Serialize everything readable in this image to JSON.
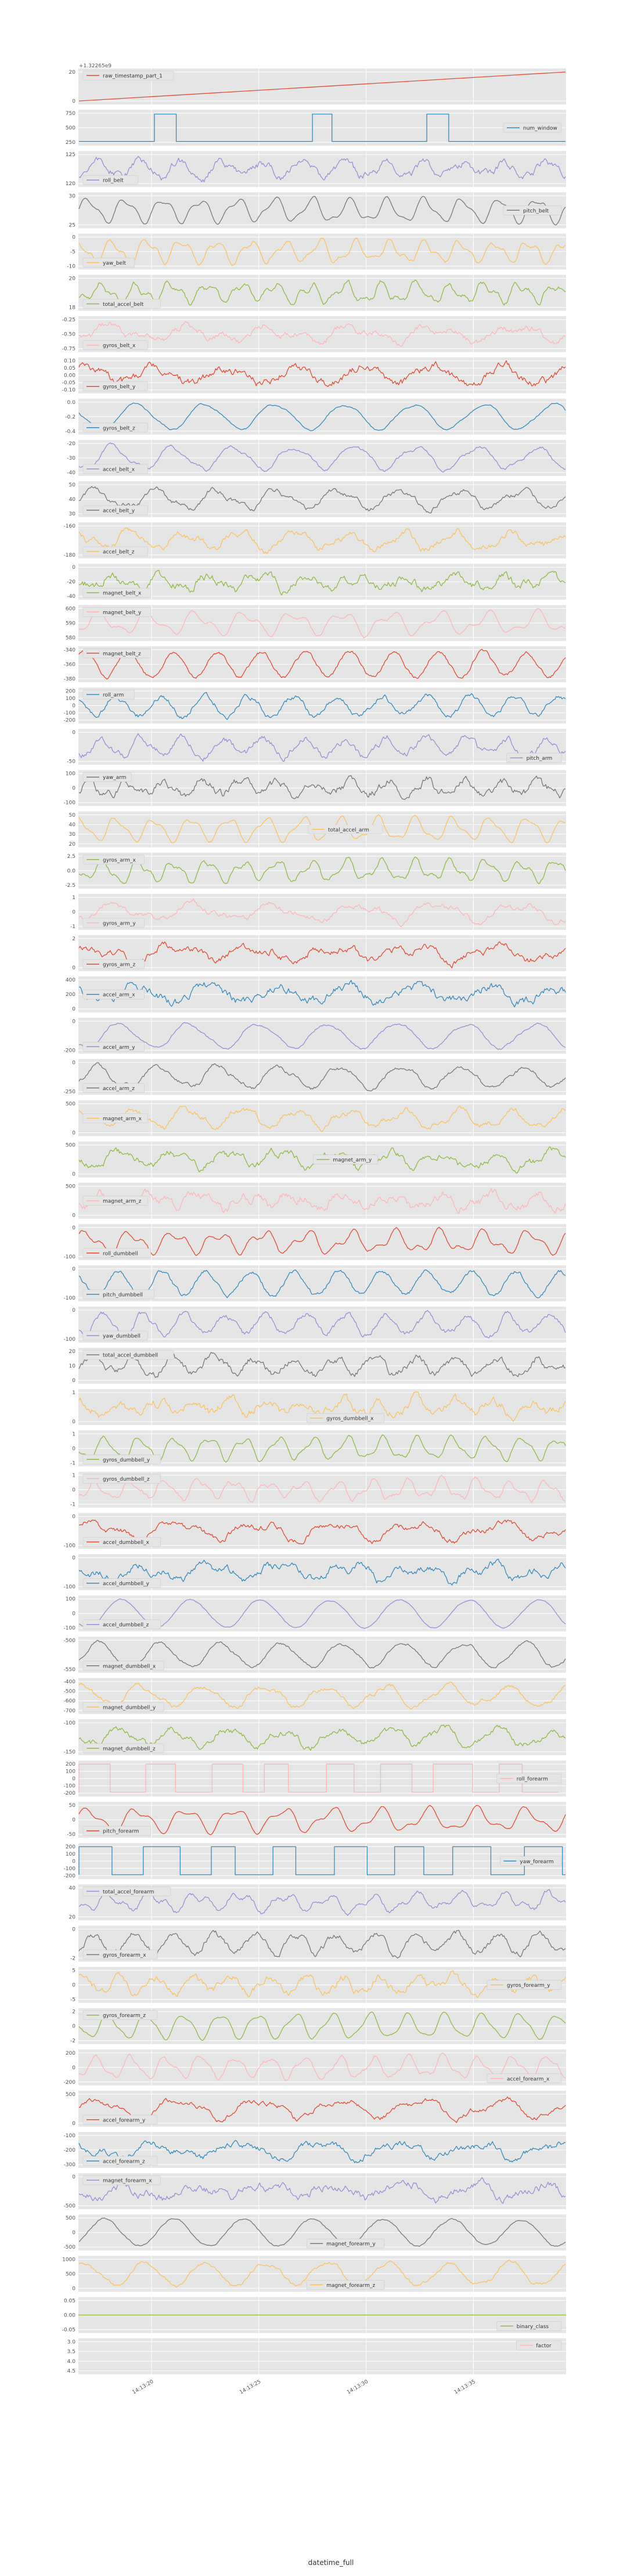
{
  "figure": {
    "offset_text": "+1.32265e9",
    "xlabel": "datetime_full"
  },
  "palette": [
    "#E24A33",
    "#348ABD",
    "#988ED5",
    "#777777",
    "#FBC15E",
    "#8EBA42",
    "#FFB5B8"
  ],
  "chart_data": {
    "type": "line",
    "layout": "stacked-subplots-shared-x",
    "x_ticks": [
      "14:13:20",
      "14:13:25",
      "14:13:30",
      "14:13:35"
    ],
    "x_tick_fractions": [
      0.15,
      0.37,
      0.59,
      0.81
    ],
    "xlabel": "datetime_full",
    "grid": true,
    "panels": [
      {
        "name": "raw_timestamp_part_1",
        "kind": "ramp",
        "yticks": [
          "20",
          "0"
        ],
        "ylim": [
          -5,
          30
        ],
        "legend": "upper-left",
        "color": 0
      },
      {
        "name": "num_window",
        "kind": "steps",
        "yticks": [
          "750",
          "500",
          "250"
        ],
        "ylim": [
          100,
          850
        ],
        "legend": "center-right",
        "color": 1
      },
      {
        "name": "roll_belt",
        "kind": "signal",
        "yticks": [
          "125",
          "120"
        ],
        "legend": "lower-left",
        "color": 2
      },
      {
        "name": "pitch_belt",
        "kind": "signal",
        "yticks": [
          "30",
          "25"
        ],
        "legend": "center-right",
        "color": 3
      },
      {
        "name": "yaw_belt",
        "kind": "signal",
        "yticks": [
          "0",
          "-5",
          "-10"
        ],
        "legend": "lower-left",
        "color": 4
      },
      {
        "name": "total_accel_belt",
        "kind": "signal",
        "yticks": [
          "20",
          "18"
        ],
        "legend": "lower-left",
        "color": 5
      },
      {
        "name": "gyros_belt_x",
        "kind": "signal",
        "yticks": [
          "-0.25",
          "-0.50",
          "-0.75"
        ],
        "legend": "lower-left",
        "color": 6
      },
      {
        "name": "gyros_belt_y",
        "kind": "signal",
        "yticks": [
          "0.10",
          "0.05",
          "0.00",
          "-0.05",
          "-0.10"
        ],
        "legend": "lower-left",
        "color": 0
      },
      {
        "name": "gyros_belt_z",
        "kind": "signal",
        "yticks": [
          "0.0",
          "-0.2",
          "-0.4"
        ],
        "legend": "lower-left",
        "color": 1
      },
      {
        "name": "accel_belt_x",
        "kind": "signal",
        "yticks": [
          "-20",
          "-30",
          "-40"
        ],
        "legend": "lower-left",
        "color": 2
      },
      {
        "name": "accel_belt_y",
        "kind": "signal",
        "yticks": [
          "50",
          "40",
          "30"
        ],
        "legend": "lower-left",
        "color": 3
      },
      {
        "name": "accel_belt_z",
        "kind": "signal",
        "yticks": [
          "-160",
          "-180"
        ],
        "legend": "lower-left",
        "color": 4
      },
      {
        "name": "magnet_belt_x",
        "kind": "signal",
        "yticks": [
          "0",
          "-20",
          "-40"
        ],
        "legend": "lower-left",
        "color": 5
      },
      {
        "name": "magnet_belt_y",
        "kind": "signal",
        "yticks": [
          "600",
          "590",
          "580"
        ],
        "legend": "upper-left",
        "color": 6
      },
      {
        "name": "magnet_belt_z",
        "kind": "signal",
        "yticks": [
          "-340",
          "-360",
          "-380"
        ],
        "legend": "upper-left",
        "color": 0
      },
      {
        "name": "roll_arm",
        "kind": "signal",
        "yticks": [
          "200",
          "100",
          "0",
          "-100",
          "-200"
        ],
        "legend": "upper-left",
        "color": 1
      },
      {
        "name": "pitch_arm",
        "kind": "signal",
        "yticks": [
          "0",
          "-50"
        ],
        "legend": "lower-right",
        "color": 2
      },
      {
        "name": "yaw_arm",
        "kind": "signal",
        "yticks": [
          "100",
          "0",
          "-100"
        ],
        "legend": "upper-left",
        "color": 3
      },
      {
        "name": "total_accel_arm",
        "kind": "signal",
        "yticks": [
          "50",
          "40",
          "30",
          "20"
        ],
        "legend": "center",
        "color": 4
      },
      {
        "name": "gyros_arm_x",
        "kind": "signal",
        "yticks": [
          "2.5",
          "0.0",
          "-2.5"
        ],
        "legend": "upper-left",
        "color": 5
      },
      {
        "name": "gyros_arm_y",
        "kind": "signal",
        "yticks": [
          "1",
          "0",
          "-1"
        ],
        "legend": "lower-left",
        "color": 6
      },
      {
        "name": "gyros_arm_z",
        "kind": "signal",
        "yticks": [
          "2",
          "0"
        ],
        "legend": "lower-left",
        "color": 0
      },
      {
        "name": "accel_arm_x",
        "kind": "signal",
        "yticks": [
          "400",
          "200",
          "0"
        ],
        "legend": "center-left",
        "color": 1
      },
      {
        "name": "accel_arm_y",
        "kind": "signal",
        "yticks": [
          "0",
          "-200"
        ],
        "legend": "lower-left",
        "color": 2
      },
      {
        "name": "accel_arm_z",
        "kind": "signal",
        "yticks": [
          "0",
          "-250"
        ],
        "legend": "lower-left",
        "color": 3
      },
      {
        "name": "magnet_arm_x",
        "kind": "signal",
        "yticks": [
          "500",
          "0"
        ],
        "legend": "center-left",
        "color": 4
      },
      {
        "name": "magnet_arm_y",
        "kind": "signal",
        "yticks": [
          "500",
          "0"
        ],
        "legend": "center",
        "color": 5
      },
      {
        "name": "magnet_arm_z",
        "kind": "signal",
        "yticks": [
          "500",
          "0"
        ],
        "legend": "center-left",
        "color": 6
      },
      {
        "name": "roll_dumbbell",
        "kind": "signal",
        "yticks": [
          "0",
          "-100"
        ],
        "legend": "lower-left",
        "color": 0
      },
      {
        "name": "pitch_dumbbell",
        "kind": "signal",
        "yticks": [
          "0",
          "-100"
        ],
        "legend": "lower-left",
        "color": 1
      },
      {
        "name": "yaw_dumbbell",
        "kind": "signal",
        "yticks": [
          "0",
          "-100"
        ],
        "legend": "lower-left",
        "color": 2
      },
      {
        "name": "total_accel_dumbbell",
        "kind": "signal",
        "yticks": [
          "20",
          "10",
          "0"
        ],
        "legend": "upper-left",
        "color": 3
      },
      {
        "name": "gyros_dumbbell_x",
        "kind": "signal",
        "yticks": [
          "1",
          "0"
        ],
        "legend": "lower-center",
        "color": 4
      },
      {
        "name": "gyros_dumbbell_y",
        "kind": "signal",
        "yticks": [
          "1",
          "0",
          "-1"
        ],
        "legend": "lower-left",
        "color": 5
      },
      {
        "name": "gyros_dumbbell_z",
        "kind": "signal",
        "yticks": [
          "1",
          "0",
          "-1"
        ],
        "legend": "upper-left",
        "color": 6
      },
      {
        "name": "accel_dumbbell_x",
        "kind": "signal",
        "yticks": [
          "0",
          "-100"
        ],
        "legend": "lower-left",
        "color": 0
      },
      {
        "name": "accel_dumbbell_y",
        "kind": "signal",
        "yticks": [
          "0",
          "-100"
        ],
        "legend": "lower-left",
        "color": 1
      },
      {
        "name": "accel_dumbbell_z",
        "kind": "signal",
        "yticks": [
          "100",
          "0",
          "-100"
        ],
        "legend": "lower-left",
        "color": 2
      },
      {
        "name": "magnet_dumbbell_x",
        "kind": "signal",
        "yticks": [
          "-500",
          "-550"
        ],
        "legend": "lower-left",
        "color": 3
      },
      {
        "name": "magnet_dumbbell_y",
        "kind": "signal",
        "yticks": [
          "-400",
          "-500",
          "-600",
          "-700"
        ],
        "legend": "lower-left",
        "color": 4
      },
      {
        "name": "magnet_dumbbell_z",
        "kind": "signal",
        "yticks": [
          "-100",
          "-150"
        ],
        "legend": "lower-left",
        "color": 5
      },
      {
        "name": "roll_forearm",
        "kind": "square",
        "yticks": [
          "200",
          "100",
          "0",
          "-100",
          "-200"
        ],
        "legend": "center-right",
        "color": 6
      },
      {
        "name": "pitch_forearm",
        "kind": "signal",
        "yticks": [
          "50",
          "0",
          "-50"
        ],
        "legend": "lower-left",
        "color": 0
      },
      {
        "name": "yaw_forearm",
        "kind": "square",
        "yticks": [
          "200",
          "100",
          "0",
          "-100",
          "-200"
        ],
        "legend": "center-right",
        "color": 1
      },
      {
        "name": "total_accel_forearm",
        "kind": "signal",
        "yticks": [
          "40",
          "20"
        ],
        "legend": "upper-left",
        "color": 2
      },
      {
        "name": "gyros_forearm_x",
        "kind": "signal",
        "yticks": [
          "0",
          "-2"
        ],
        "legend": "lower-left",
        "color": 3
      },
      {
        "name": "gyros_forearm_y",
        "kind": "signal",
        "yticks": [
          "5",
          "0",
          "-5"
        ],
        "legend": "center-right",
        "color": 4
      },
      {
        "name": "gyros_forearm_z",
        "kind": "signal",
        "yticks": [
          "2",
          "0",
          "-2"
        ],
        "legend": "upper-left",
        "color": 5
      },
      {
        "name": "accel_forearm_x",
        "kind": "signal",
        "yticks": [
          "200",
          "0",
          "-200"
        ],
        "legend": "lower-right",
        "color": 6
      },
      {
        "name": "accel_forearm_y",
        "kind": "signal",
        "yticks": [
          "500",
          "0"
        ],
        "legend": "lower-left",
        "color": 0
      },
      {
        "name": "accel_forearm_z",
        "kind": "signal",
        "yticks": [
          "-100",
          "-200",
          "-300"
        ],
        "legend": "lower-left",
        "color": 1
      },
      {
        "name": "magnet_forearm_x",
        "kind": "signal",
        "yticks": [
          "0",
          "-500"
        ],
        "legend": "upper-left",
        "color": 2
      },
      {
        "name": "magnet_forearm_y",
        "kind": "signal",
        "yticks": [
          "500",
          "0",
          "-500"
        ],
        "legend": "lower-center",
        "color": 3
      },
      {
        "name": "magnet_forearm_z",
        "kind": "signal",
        "yticks": [
          "1000",
          "500",
          "0"
        ],
        "legend": "lower-center",
        "color": 4
      },
      {
        "name": "binary_class",
        "kind": "flat",
        "yticks": [
          "0.05",
          "0.00",
          "-0.05"
        ],
        "legend": "lower-right",
        "color": 5
      },
      {
        "name": "factor",
        "kind": "none",
        "yticks": [
          "3.0",
          "3.5",
          "4.0",
          "4.5"
        ],
        "legend": "upper-right",
        "color": 6
      }
    ]
  }
}
